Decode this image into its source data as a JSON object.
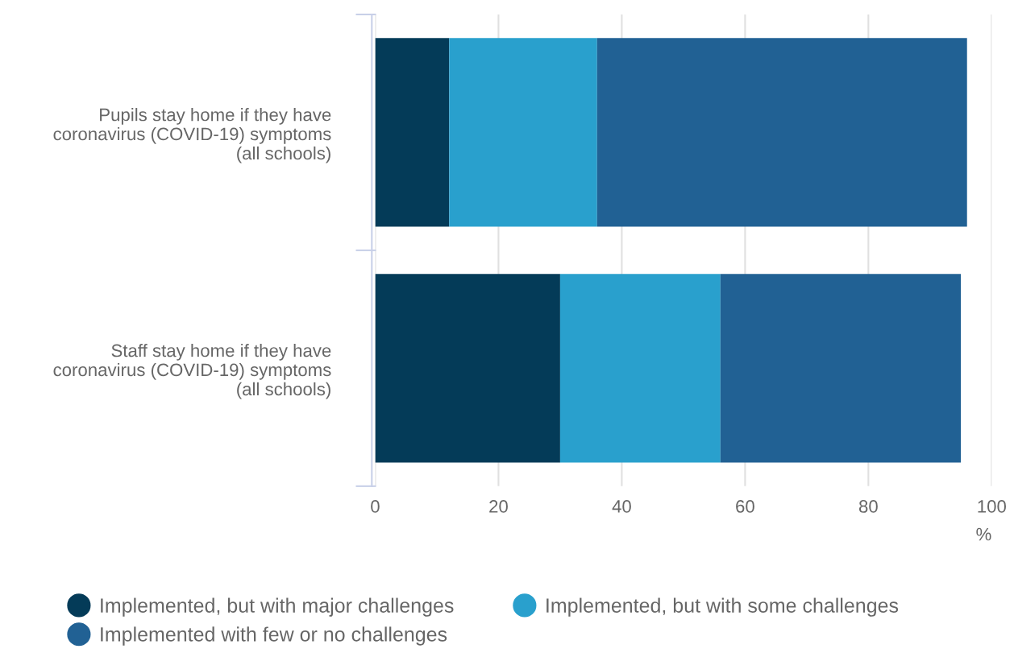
{
  "chart_data": {
    "type": "bar",
    "orientation": "horizontal",
    "stacked": true,
    "categories": [
      "Pupils stay home if they have\ncoronavirus (COVID-19) symptoms\n(all schools)",
      "Staff stay home if they have\ncoronavirus (COVID-19) symptoms\n(all schools)"
    ],
    "series": [
      {
        "name": "Implemented, but with major challenges",
        "color": "#043b58",
        "values": [
          12,
          30
        ]
      },
      {
        "name": "Implemented, but with some challenges",
        "color": "#29a0cd",
        "values": [
          24,
          26
        ]
      },
      {
        "name": "Implemented with few or no challenges",
        "color": "#216194",
        "values": [
          60,
          39
        ]
      }
    ],
    "xlabel": "%",
    "xlim": [
      0,
      100
    ],
    "xticks": [
      0,
      20,
      40,
      60,
      80,
      100
    ],
    "grid": "x",
    "legend": "bottom",
    "marker": "circle"
  }
}
